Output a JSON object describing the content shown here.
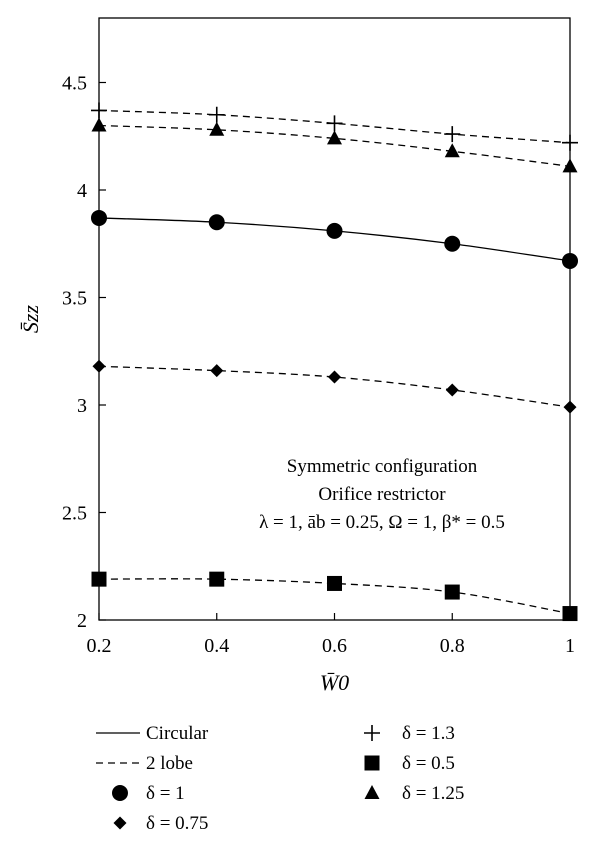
{
  "chart_data": {
    "type": "line",
    "xlabel": "W̄0",
    "ylabel": "S̄zz",
    "xlim": [
      0.2,
      1.0
    ],
    "ylim": [
      2.0,
      4.8
    ],
    "xticks": [
      0.2,
      0.4,
      0.6,
      0.8,
      1.0
    ],
    "xtick_labels": [
      "0.2",
      "0.4",
      "0.6",
      "0.8",
      "1"
    ],
    "yticks": [
      2.0,
      2.5,
      3.0,
      3.5,
      4.0,
      4.5
    ],
    "ytick_labels": [
      "2",
      "2.5",
      "3",
      "3.5",
      "4",
      "4.5"
    ],
    "grid": false,
    "annotations": [
      "Symmetric configuration",
      "Orifice restrictor",
      "λ = 1, āb = 0.25, Ω = 1, β* = 0.5"
    ],
    "series": [
      {
        "name": "δ = 1.3",
        "line": "dashed",
        "marker": "plus",
        "x": [
          0.2,
          0.4,
          0.6,
          0.8,
          1.0
        ],
        "y": [
          4.37,
          4.35,
          4.31,
          4.26,
          4.22
        ]
      },
      {
        "name": "δ = 1.25",
        "line": "dashed",
        "marker": "triangle",
        "x": [
          0.2,
          0.4,
          0.6,
          0.8,
          1.0
        ],
        "y": [
          4.3,
          4.28,
          4.24,
          4.18,
          4.11
        ]
      },
      {
        "name": "δ = 1",
        "line": "solid",
        "marker": "circle",
        "x": [
          0.2,
          0.4,
          0.6,
          0.8,
          1.0
        ],
        "y": [
          3.87,
          3.85,
          3.81,
          3.75,
          3.67
        ]
      },
      {
        "name": "δ = 0.75",
        "line": "dashed",
        "marker": "diamond",
        "x": [
          0.2,
          0.4,
          0.6,
          0.8,
          1.0
        ],
        "y": [
          3.18,
          3.16,
          3.13,
          3.07,
          2.99
        ]
      },
      {
        "name": "δ = 0.5",
        "line": "dashed",
        "marker": "square",
        "x": [
          0.2,
          0.4,
          0.6,
          0.8,
          1.0
        ],
        "y": [
          2.19,
          2.19,
          2.17,
          2.13,
          2.03
        ]
      }
    ],
    "legend": {
      "placement": "bottom",
      "entries": [
        {
          "symbol": "solid-line",
          "label": "Circular"
        },
        {
          "symbol": "dashed-line",
          "label": "2 lobe"
        },
        {
          "symbol": "circle",
          "label": "δ = 1"
        },
        {
          "symbol": "diamond",
          "label": "δ = 0.75"
        },
        {
          "symbol": "plus",
          "label": "δ = 1.3"
        },
        {
          "symbol": "square",
          "label": "δ = 0.5"
        },
        {
          "symbol": "triangle",
          "label": "δ = 1.25"
        }
      ]
    }
  }
}
